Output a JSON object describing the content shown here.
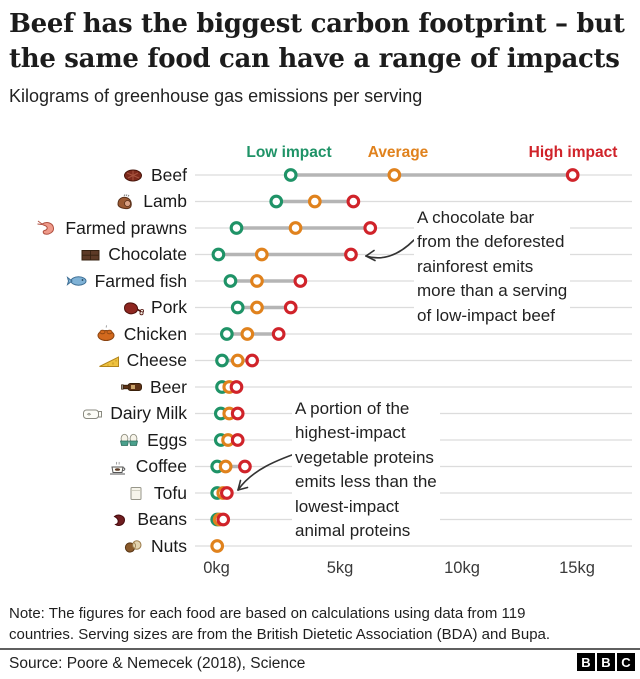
{
  "header": {
    "title": "Beef has the biggest carbon footprint – but\nthe same food can have a range of impacts",
    "subtitle": "Kilograms of greenhouse gas emissions per serving"
  },
  "legend": {
    "low": "Low impact",
    "average": "Average",
    "high": "High impact"
  },
  "colors": {
    "low_impact": "#1f9367",
    "average": "#e0821d",
    "high_impact": "#d0232a",
    "connector": "#b5b5b5",
    "gridline": "#dcdcdc",
    "divider": "#5f5f5f"
  },
  "chart_data": {
    "type": "dumbbell-dot",
    "title": "Kilograms of greenhouse gas emissions per serving",
    "unit": "kg per serving",
    "xlim": [
      0,
      15
    ],
    "x_ticks": {
      "labels": [
        "0kg",
        "5kg",
        "10kg",
        "15kg"
      ],
      "values": [
        0,
        5,
        10,
        15
      ]
    },
    "legend_entries": [
      "Low impact",
      "Average",
      "High impact"
    ],
    "grid": "horizontal-row-lines",
    "series": [
      {
        "label": "Beef",
        "icon": "beef-icon",
        "low": 3.1,
        "average": 7.4,
        "high": 14.8
      },
      {
        "label": "Lamb",
        "icon": "lamb-icon",
        "low": 2.5,
        "average": 4.1,
        "high": 5.7
      },
      {
        "label": "Farmed prawns",
        "icon": "prawn-icon",
        "low": 0.85,
        "average": 3.3,
        "high": 6.4
      },
      {
        "label": "Chocolate",
        "icon": "chocolate-icon",
        "low": 0.1,
        "average": 1.9,
        "high": 5.6
      },
      {
        "label": "Farmed fish",
        "icon": "fish-icon",
        "low": 0.6,
        "average": 1.7,
        "high": 3.5
      },
      {
        "label": "Pork",
        "icon": "pork-icon",
        "low": 0.9,
        "average": 1.7,
        "high": 3.1
      },
      {
        "label": "Chicken",
        "icon": "chicken-icon",
        "low": 0.45,
        "average": 1.3,
        "high": 2.6
      },
      {
        "label": "Cheese",
        "icon": "cheese-icon",
        "low": 0.25,
        "average": 0.9,
        "high": 1.5
      },
      {
        "label": "Beer",
        "icon": "beer-icon",
        "low": 0.25,
        "average": 0.55,
        "high": 0.85
      },
      {
        "label": "Dairy Milk",
        "icon": "milk-icon",
        "low": 0.2,
        "average": 0.55,
        "high": 0.9
      },
      {
        "label": "Eggs",
        "icon": "eggs-icon",
        "low": 0.2,
        "average": 0.5,
        "high": 0.9
      },
      {
        "label": "Coffee",
        "icon": "coffee-icon",
        "low": 0.05,
        "average": 0.4,
        "high": 1.2
      },
      {
        "label": "Tofu",
        "icon": "tofu-icon",
        "low": 0.05,
        "average": 0.3,
        "high": 0.45
      },
      {
        "label": "Beans",
        "icon": "beans-icon",
        "low": 0.05,
        "average": 0.15,
        "high": 0.3
      },
      {
        "label": "Nuts",
        "icon": "nuts-icon",
        "low": null,
        "average": 0.05,
        "high": null
      }
    ]
  },
  "annotations": {
    "chocolate": "A chocolate bar\nfrom the deforested\nrainforest emits\nmore than a serving\nof low-impact beef",
    "protein": "A portion of the\nhighest-impact\nvegetable proteins\nemits less than the\nlowest-impact\nanimal proteins"
  },
  "footer": {
    "note": "Note: The figures for each food are based on calculations using data from 119\ncountries. Serving sizes are from the British Dietetic Association (BDA) and Bupa.",
    "source": "Source: Poore & Nemecek (2018), Science",
    "logo": [
      "B",
      "B",
      "C"
    ]
  }
}
